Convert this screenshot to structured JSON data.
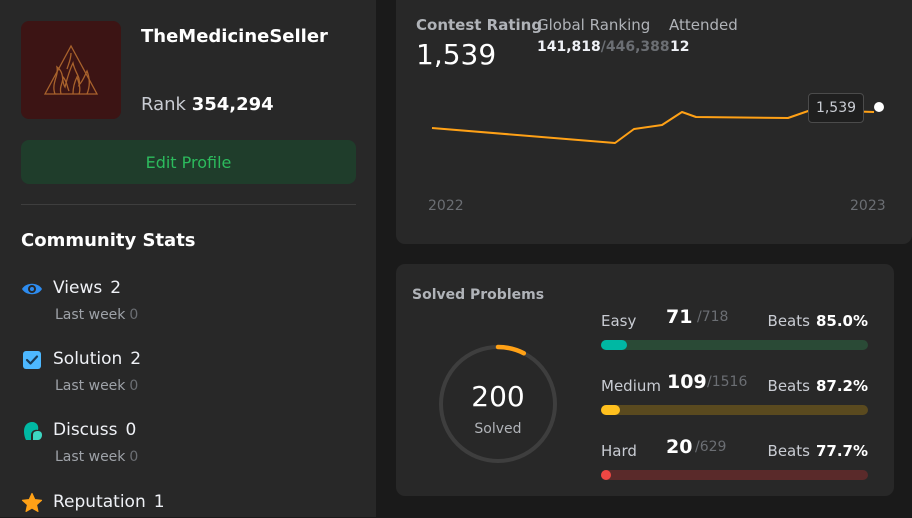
{
  "profile": {
    "username": "TheMedicineSeller",
    "rank_label": "Rank",
    "rank_value": "354,294",
    "edit_label": "Edit Profile"
  },
  "community": {
    "title": "Community Stats",
    "stats": [
      {
        "label": "Views",
        "value": "2",
        "sub_label": "Last week",
        "sub_value": "0",
        "icon": "eye-icon"
      },
      {
        "label": "Solution",
        "value": "2",
        "sub_label": "Last week",
        "sub_value": "0",
        "icon": "checkbox-icon"
      },
      {
        "label": "Discuss",
        "value": "0",
        "sub_label": "Last week",
        "sub_value": "0",
        "icon": "chat-bubble-icon"
      },
      {
        "label": "Reputation",
        "value": "1",
        "icon": "star-icon"
      }
    ]
  },
  "contest": {
    "rating_label": "Contest Rating",
    "rating_value": "1,539",
    "global_label": "Global Ranking",
    "global_value": "141,818",
    "global_total": "/446,388",
    "attended_label": "Attended",
    "attended_value": "12",
    "tooltip": "1,539",
    "year_start": "2022",
    "year_end": "2023"
  },
  "solved": {
    "title": "Solved Problems",
    "total": "200",
    "total_label": "Solved",
    "difficulties": [
      {
        "name": "Easy",
        "count": "71",
        "total": "/718",
        "beats_label": "Beats",
        "beats": "85.0%",
        "fraction": 0.0989,
        "color": "#00b8a3",
        "track": "#2a4a36"
      },
      {
        "name": "Medium",
        "count": "109",
        "total": "/1516",
        "beats_label": "Beats",
        "beats": "87.2%",
        "fraction": 0.0719,
        "color": "#ffc01e",
        "track": "#5a4a1f"
      },
      {
        "name": "Hard",
        "count": "20",
        "total": "/629",
        "beats_label": "Beats",
        "beats": "77.7%",
        "fraction": 0.0318,
        "color": "#ef4743",
        "track": "#5a2a2a"
      }
    ]
  },
  "colors": {
    "accent": "#ffa116",
    "green": "#2cbb5d"
  }
}
